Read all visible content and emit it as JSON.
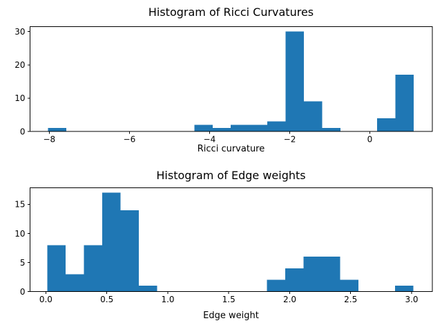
{
  "figure": {
    "background": "#ffffff",
    "bar_color": "#1f77b4",
    "axis_color": "#000000"
  },
  "chart_data": [
    {
      "type": "bar",
      "subtype": "histogram",
      "title": "Histogram of Ricci Curvatures",
      "xlabel": "Ricci curvature",
      "ylabel": "",
      "bin_start": -8.03,
      "bin_width": 0.456,
      "counts": [
        1,
        0,
        0,
        0,
        0,
        0,
        0,
        0,
        2,
        1,
        2,
        2,
        3,
        30,
        9,
        1,
        0,
        0,
        4,
        17
      ],
      "xlim": [
        -8.48,
        1.56
      ],
      "ylim": [
        0,
        31.5
      ],
      "xticks": [
        -8,
        -6,
        -4,
        -2,
        0
      ],
      "xtick_labels": [
        "−8",
        "−6",
        "−4",
        "−2",
        "0"
      ],
      "yticks": [
        0,
        10,
        20,
        30
      ],
      "ytick_labels": [
        "0",
        "10",
        "20",
        "30"
      ],
      "grid": false,
      "legend": null
    },
    {
      "type": "bar",
      "subtype": "histogram",
      "title": "Histogram of Edge weights",
      "xlabel": "Edge weight",
      "ylabel": "",
      "bin_start": 0.013,
      "bin_width": 0.15,
      "counts": [
        8,
        3,
        8,
        17,
        14,
        1,
        0,
        0,
        0,
        0,
        0,
        0,
        2,
        4,
        6,
        6,
        2,
        0,
        0,
        1
      ],
      "xlim": [
        -0.13,
        3.17
      ],
      "ylim": [
        0,
        17.85
      ],
      "xticks": [
        0,
        0.5,
        1,
        1.5,
        2,
        2.5,
        3
      ],
      "xtick_labels": [
        "0.0",
        "0.5",
        "1.0",
        "1.5",
        "2.0",
        "2.5",
        "3.0"
      ],
      "yticks": [
        0,
        5,
        10,
        15
      ],
      "ytick_labels": [
        "0",
        "5",
        "10",
        "15"
      ],
      "grid": false,
      "legend": null
    }
  ]
}
